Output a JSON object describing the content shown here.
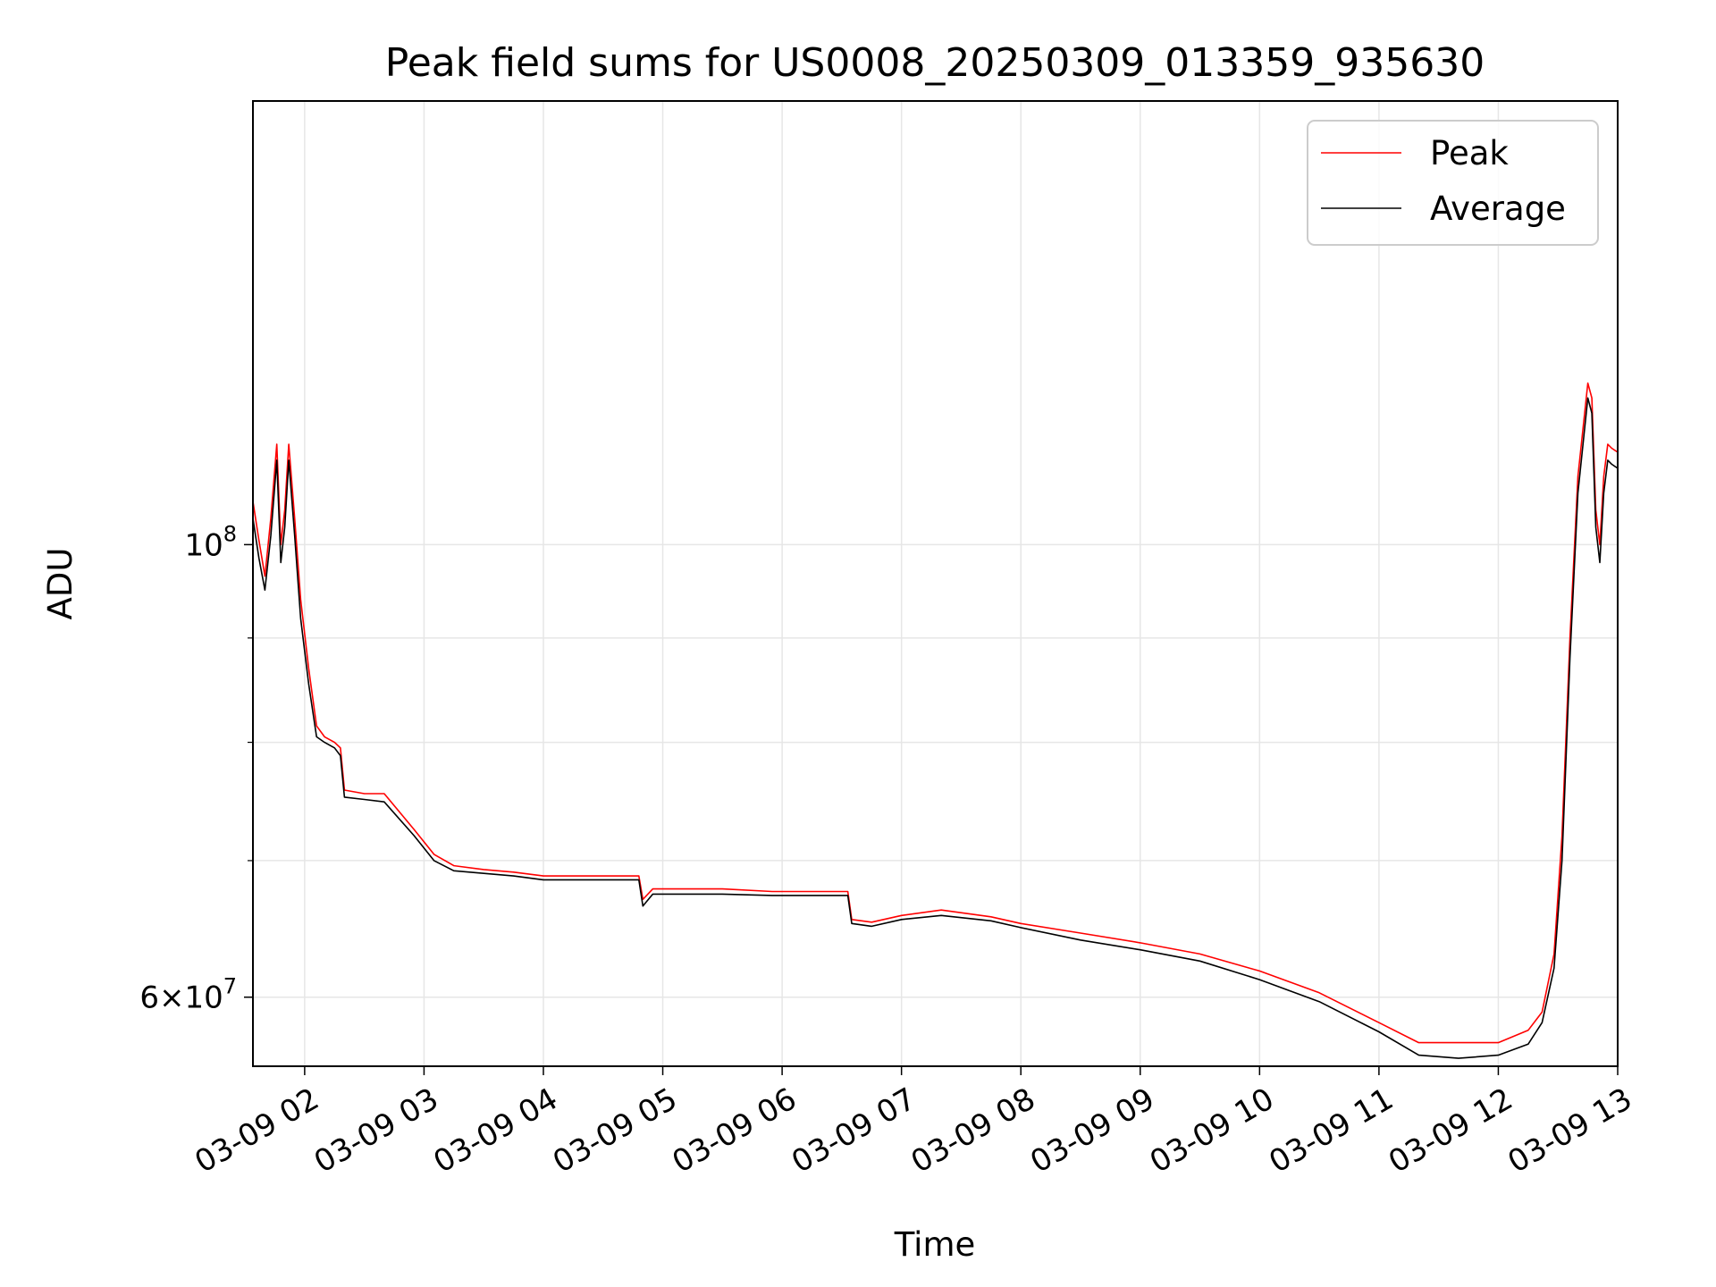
{
  "chart_data": {
    "type": "line",
    "title": "Peak field sums for US0008_20250309_013359_935630",
    "xlabel": "Time",
    "ylabel": "ADU",
    "y_scale": "log",
    "grid": true,
    "legend_position": "top-right",
    "xlim": [
      "2025-03-09 01:34",
      "2025-03-09 13:00"
    ],
    "ylim": [
      55500000,
      165000000
    ],
    "x_ticks": [
      {
        "value": "2025-03-09 02:00",
        "label": "03-09 02"
      },
      {
        "value": "2025-03-09 03:00",
        "label": "03-09 03"
      },
      {
        "value": "2025-03-09 04:00",
        "label": "03-09 04"
      },
      {
        "value": "2025-03-09 05:00",
        "label": "03-09 05"
      },
      {
        "value": "2025-03-09 06:00",
        "label": "03-09 06"
      },
      {
        "value": "2025-03-09 07:00",
        "label": "03-09 07"
      },
      {
        "value": "2025-03-09 08:00",
        "label": "03-09 08"
      },
      {
        "value": "2025-03-09 09:00",
        "label": "03-09 09"
      },
      {
        "value": "2025-03-09 10:00",
        "label": "03-09 10"
      },
      {
        "value": "2025-03-09 11:00",
        "label": "03-09 11"
      },
      {
        "value": "2025-03-09 12:00",
        "label": "03-09 12"
      },
      {
        "value": "2025-03-09 13:00",
        "label": "03-09 13"
      }
    ],
    "y_ticks_major": [
      {
        "value": 100000000,
        "base": "10",
        "exp": "8",
        "prefix": ""
      },
      {
        "value": 60000000,
        "base": "10",
        "exp": "7",
        "prefix": "6×"
      }
    ],
    "y_ticks_minor": [
      70000000,
      80000000,
      90000000
    ],
    "series": [
      {
        "name": "Peak",
        "color": "#ff0000",
        "x": [
          "2025-03-09 01:34",
          "2025-03-09 01:37",
          "2025-03-09 01:40",
          "2025-03-09 01:43",
          "2025-03-09 01:46",
          "2025-03-09 01:48",
          "2025-03-09 01:50",
          "2025-03-09 01:52",
          "2025-03-09 01:55",
          "2025-03-09 01:58",
          "2025-03-09 02:02",
          "2025-03-09 02:06",
          "2025-03-09 02:10",
          "2025-03-09 02:15",
          "2025-03-09 02:18",
          "2025-03-09 02:20",
          "2025-03-09 02:30",
          "2025-03-09 02:40",
          "2025-03-09 02:55",
          "2025-03-09 03:05",
          "2025-03-09 03:15",
          "2025-03-09 03:30",
          "2025-03-09 03:45",
          "2025-03-09 04:00",
          "2025-03-09 04:20",
          "2025-03-09 04:40",
          "2025-03-09 04:48",
          "2025-03-09 04:50",
          "2025-03-09 04:55",
          "2025-03-09 05:00",
          "2025-03-09 05:30",
          "2025-03-09 05:55",
          "2025-03-09 06:20",
          "2025-03-09 06:33",
          "2025-03-09 06:35",
          "2025-03-09 06:45",
          "2025-03-09 07:00",
          "2025-03-09 07:20",
          "2025-03-09 07:45",
          "2025-03-09 08:00",
          "2025-03-09 08:30",
          "2025-03-09 09:00",
          "2025-03-09 09:30",
          "2025-03-09 10:00",
          "2025-03-09 10:30",
          "2025-03-09 11:00",
          "2025-03-09 11:20",
          "2025-03-09 11:40",
          "2025-03-09 12:00",
          "2025-03-09 12:15",
          "2025-03-09 12:22",
          "2025-03-09 12:28",
          "2025-03-09 12:32",
          "2025-03-09 12:36",
          "2025-03-09 12:40",
          "2025-03-09 12:45",
          "2025-03-09 12:47",
          "2025-03-09 12:49",
          "2025-03-09 12:51",
          "2025-03-09 12:53",
          "2025-03-09 12:55",
          "2025-03-09 12:57",
          "2025-03-09 13:00"
        ],
        "y": [
          105000000,
          100500000,
          96500000,
          103000000,
          112000000,
          100000000,
          104000000,
          112000000,
          103000000,
          94000000,
          87000000,
          81500000,
          80500000,
          80000000,
          79500000,
          75800000,
          75500000,
          75500000,
          72500000,
          70500000,
          69600000,
          69300000,
          69100000,
          68800000,
          68800000,
          68800000,
          68800000,
          67000000,
          67800000,
          67800000,
          67800000,
          67600000,
          67600000,
          67600000,
          65500000,
          65300000,
          65800000,
          66200000,
          65700000,
          65200000,
          64500000,
          63800000,
          63000000,
          61800000,
          60300000,
          58300000,
          57000000,
          57000000,
          57000000,
          57800000,
          59000000,
          63000000,
          72000000,
          90000000,
          108000000,
          120000000,
          118000000,
          104000000,
          100000000,
          108000000,
          112000000,
          111500000,
          111000000
        ]
      },
      {
        "name": "Average",
        "color": "#000000",
        "x": [
          "2025-03-09 01:34",
          "2025-03-09 01:37",
          "2025-03-09 01:40",
          "2025-03-09 01:43",
          "2025-03-09 01:46",
          "2025-03-09 01:48",
          "2025-03-09 01:50",
          "2025-03-09 01:52",
          "2025-03-09 01:55",
          "2025-03-09 01:58",
          "2025-03-09 02:02",
          "2025-03-09 02:06",
          "2025-03-09 02:10",
          "2025-03-09 02:15",
          "2025-03-09 02:18",
          "2025-03-09 02:20",
          "2025-03-09 02:30",
          "2025-03-09 02:40",
          "2025-03-09 02:55",
          "2025-03-09 03:05",
          "2025-03-09 03:15",
          "2025-03-09 03:30",
          "2025-03-09 03:45",
          "2025-03-09 04:00",
          "2025-03-09 04:20",
          "2025-03-09 04:40",
          "2025-03-09 04:48",
          "2025-03-09 04:50",
          "2025-03-09 04:55",
          "2025-03-09 05:00",
          "2025-03-09 05:30",
          "2025-03-09 05:55",
          "2025-03-09 06:20",
          "2025-03-09 06:33",
          "2025-03-09 06:35",
          "2025-03-09 06:45",
          "2025-03-09 07:00",
          "2025-03-09 07:20",
          "2025-03-09 07:45",
          "2025-03-09 08:00",
          "2025-03-09 08:30",
          "2025-03-09 09:00",
          "2025-03-09 09:30",
          "2025-03-09 10:00",
          "2025-03-09 10:30",
          "2025-03-09 11:00",
          "2025-03-09 11:20",
          "2025-03-09 11:40",
          "2025-03-09 12:00",
          "2025-03-09 12:15",
          "2025-03-09 12:22",
          "2025-03-09 12:28",
          "2025-03-09 12:32",
          "2025-03-09 12:36",
          "2025-03-09 12:40",
          "2025-03-09 12:45",
          "2025-03-09 12:47",
          "2025-03-09 12:49",
          "2025-03-09 12:51",
          "2025-03-09 12:53",
          "2025-03-09 12:55",
          "2025-03-09 12:57",
          "2025-03-09 13:00"
        ],
        "y": [
          103000000,
          98500000,
          95000000,
          101000000,
          110000000,
          98000000,
          102000000,
          110000000,
          101000000,
          92000000,
          85500000,
          80500000,
          80000000,
          79500000,
          78800000,
          75200000,
          75000000,
          74800000,
          72000000,
          70000000,
          69200000,
          69000000,
          68800000,
          68500000,
          68500000,
          68500000,
          68500000,
          66500000,
          67400000,
          67400000,
          67400000,
          67300000,
          67300000,
          67300000,
          65200000,
          65000000,
          65500000,
          65800000,
          65400000,
          64900000,
          64000000,
          63300000,
          62500000,
          61200000,
          59700000,
          57700000,
          56200000,
          56000000,
          56200000,
          56900000,
          58300000,
          62000000,
          70000000,
          88000000,
          106000000,
          118000000,
          116000000,
          102000000,
          98000000,
          106000000,
          110000000,
          109500000,
          109000000
        ]
      }
    ]
  }
}
